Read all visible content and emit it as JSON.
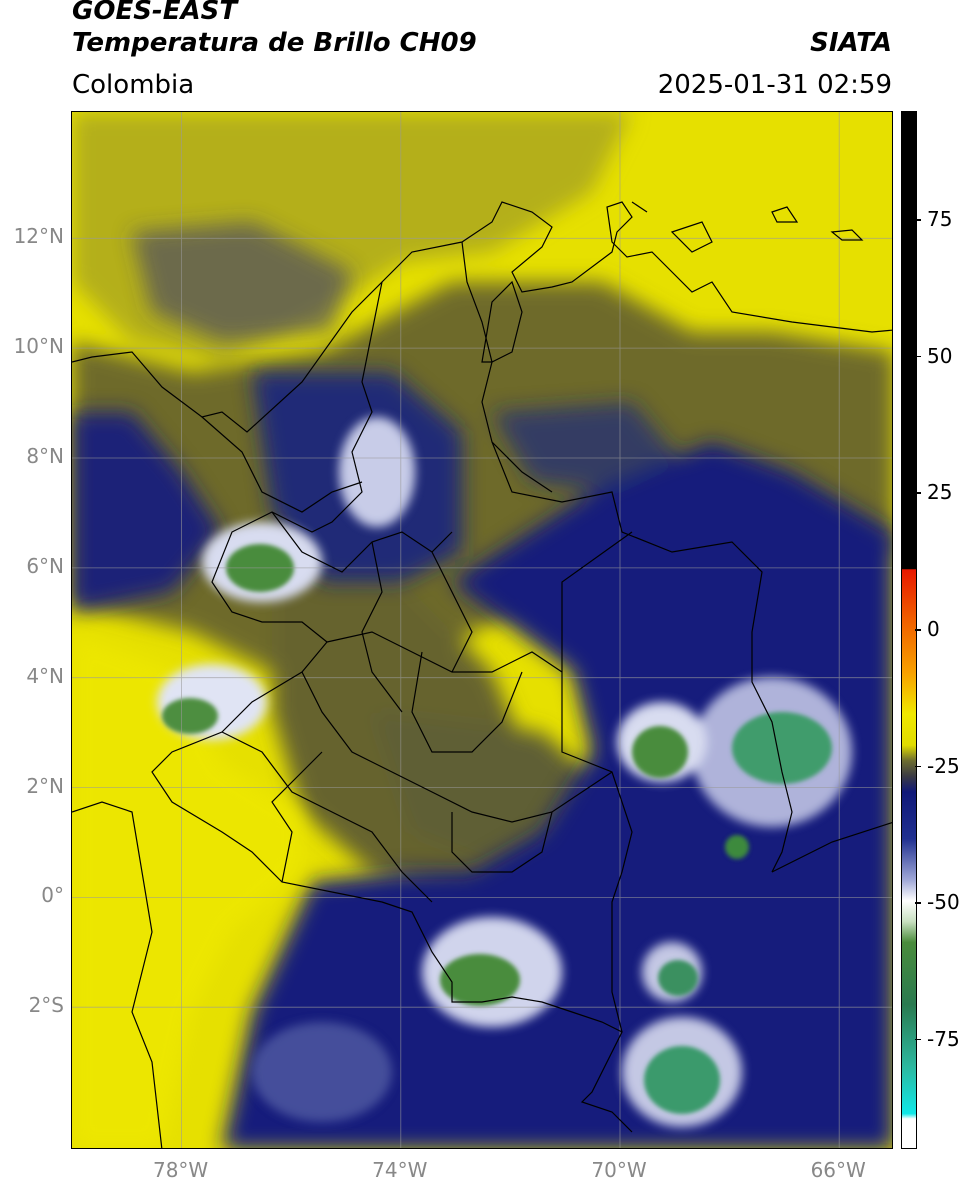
{
  "header": {
    "satellite": "GOES-EAST",
    "product": "Temperatura de Brillo CH09",
    "agency": "SIATA",
    "region": "Colombia",
    "datetime": "2025-01-31 02:59"
  },
  "map": {
    "lon_range": [
      -80,
      -65
    ],
    "lat_range": [
      -4.6,
      14.3
    ],
    "lat_ticks": [
      {
        "value": 12,
        "label": "12°N"
      },
      {
        "value": 10,
        "label": "10°N"
      },
      {
        "value": 8,
        "label": "8°N"
      },
      {
        "value": 6,
        "label": "6°N"
      },
      {
        "value": 4,
        "label": "4°N"
      },
      {
        "value": 2,
        "label": "2°N"
      },
      {
        "value": 0,
        "label": "0°"
      },
      {
        "value": -2,
        "label": "2°S"
      }
    ],
    "lon_ticks": [
      {
        "value": -78,
        "label": "78°W"
      },
      {
        "value": -74,
        "label": "74°W"
      },
      {
        "value": -70,
        "label": "70°W"
      },
      {
        "value": -66,
        "label": "66°W"
      }
    ]
  },
  "colorbar": {
    "range": [
      -95,
      95
    ],
    "ticks": [
      {
        "value": 75,
        "label": "75"
      },
      {
        "value": 50,
        "label": "50"
      },
      {
        "value": 25,
        "label": "25"
      },
      {
        "value": 0,
        "label": "0"
      },
      {
        "value": -25,
        "label": "-25"
      },
      {
        "value": -50,
        "label": "-50"
      },
      {
        "value": -75,
        "label": "-75"
      }
    ],
    "colors": {
      "warm": "#000000",
      "red": "#e81800",
      "orange": "#f8a000",
      "yellow": "#f0e800",
      "olive": "#6c6c30",
      "navy": "#101878",
      "white": "#ffffff",
      "green": "#4a8c3c",
      "teal": "#2cb8a0",
      "cyan": "#10e8e8"
    }
  }
}
